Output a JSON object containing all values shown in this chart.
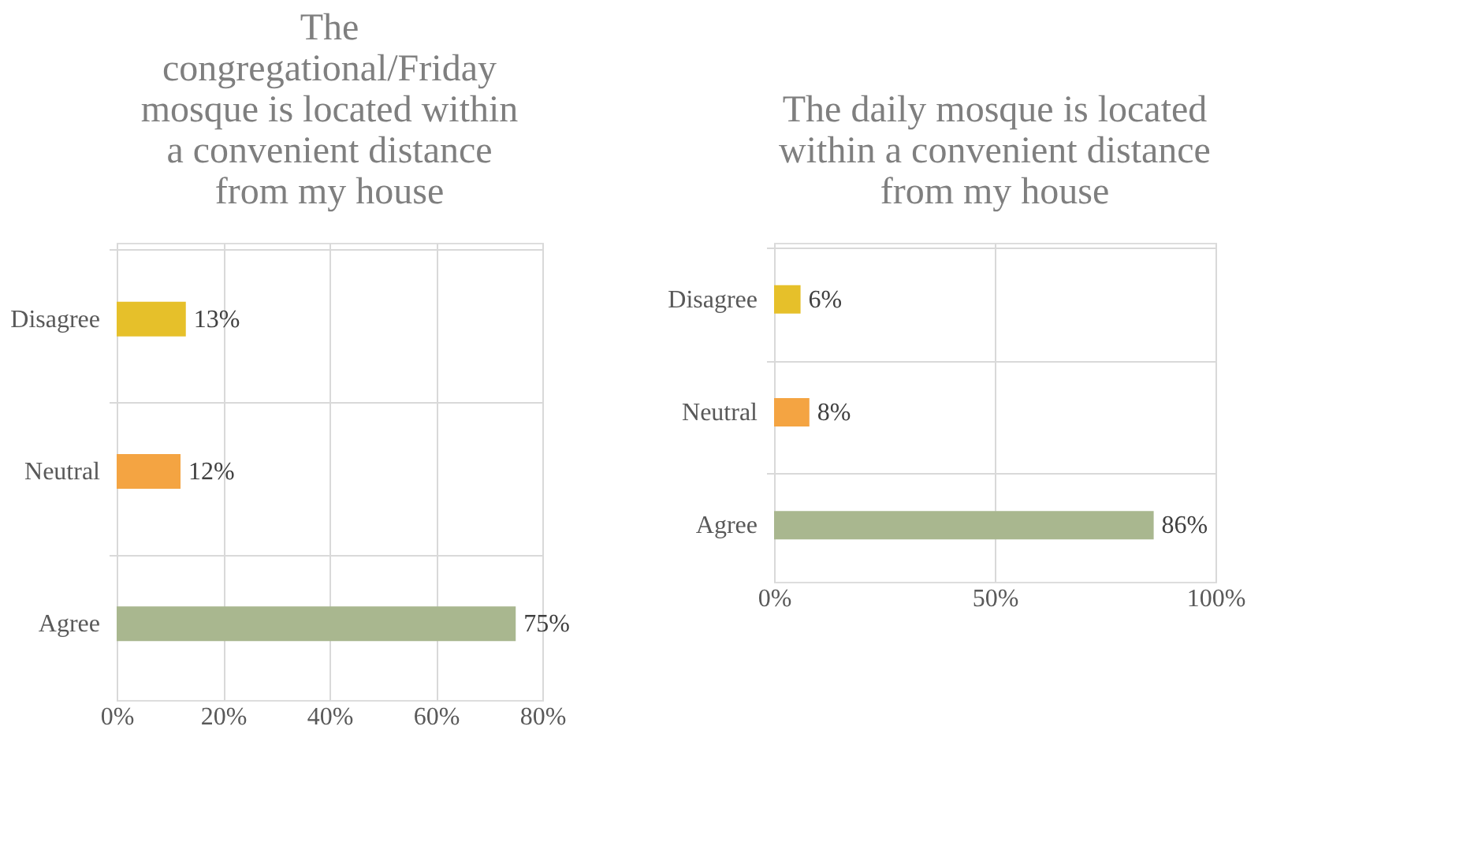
{
  "chart_data": [
    {
      "type": "bar",
      "orientation": "horizontal",
      "title": "The congregational/Friday mosque is located within a convenient distance from my house",
      "categories": [
        "Disagree",
        "Neutral",
        "Agree"
      ],
      "values": [
        13,
        12,
        75
      ],
      "colors": [
        "#e6c02a",
        "#f4a442",
        "#a9b78f"
      ],
      "value_labels": [
        "13%",
        "12%",
        "75%"
      ],
      "xlim": [
        0,
        80
      ],
      "xticks": [
        {
          "value": 0,
          "label": "0%"
        },
        {
          "value": 20,
          "label": "20%"
        },
        {
          "value": 40,
          "label": "40%"
        },
        {
          "value": 60,
          "label": "60%"
        },
        {
          "value": 80,
          "label": "80%"
        }
      ],
      "grid": true
    },
    {
      "type": "bar",
      "orientation": "horizontal",
      "title": "The daily mosque is located within a convenient distance from my house",
      "categories": [
        "Disagree",
        "Neutral",
        "Agree"
      ],
      "values": [
        6,
        8,
        86
      ],
      "colors": [
        "#e6c02a",
        "#f4a442",
        "#a9b78f"
      ],
      "value_labels": [
        "6%",
        "8%",
        "86%"
      ],
      "xlim": [
        0,
        100
      ],
      "xticks": [
        {
          "value": 0,
          "label": "0%"
        },
        {
          "value": 50,
          "label": "50%"
        },
        {
          "value": 100,
          "label": "100%"
        }
      ],
      "grid": true
    }
  ]
}
